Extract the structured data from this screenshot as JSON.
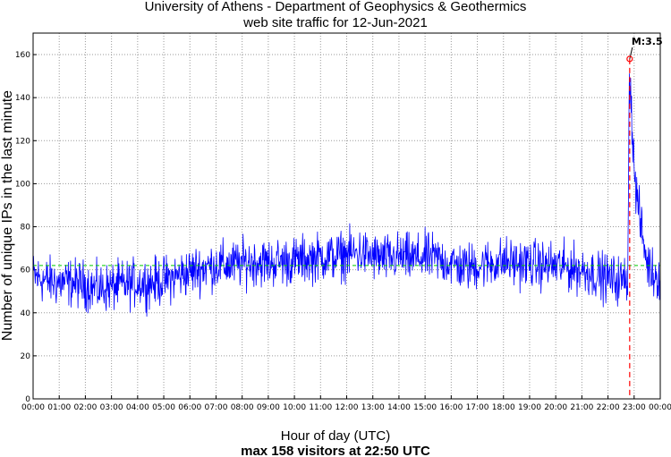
{
  "chart_data": {
    "type": "line",
    "title": "University of Athens - Department of Geophysics & Geothermics",
    "subtitle": "web site traffic for 12-Jun-2021",
    "xlabel": "Hour of day (UTC)",
    "ylabel": "Number of unique IPs in the last minute",
    "footer": "max 158 visitors at 22:50 UTC",
    "xlim": [
      0,
      24
    ],
    "ylim": [
      0,
      170
    ],
    "yticks": [
      0,
      20,
      40,
      60,
      80,
      100,
      120,
      140,
      160
    ],
    "xtick_labels": [
      "00:00",
      "01:00",
      "02:00",
      "03:00",
      "04:00",
      "05:00",
      "06:00",
      "07:00",
      "08:00",
      "09:00",
      "10:00",
      "11:00",
      "12:00",
      "13:00",
      "14:00",
      "15:00",
      "16:00",
      "17:00",
      "18:00",
      "19:00",
      "20:00",
      "21:00",
      "22:00",
      "23:00",
      "00:00"
    ],
    "grid": true,
    "mean_line": {
      "value": 62,
      "color": "#00cc00"
    },
    "series": [
      {
        "color": "#0000ff",
        "x": [
          0,
          0.5,
          1,
          1.5,
          2,
          2.5,
          3,
          3.5,
          4,
          4.5,
          5,
          5.5,
          6,
          6.5,
          7,
          7.5,
          8,
          8.5,
          9,
          9.5,
          10,
          10.5,
          11,
          11.5,
          12,
          12.5,
          13,
          13.5,
          14,
          14.5,
          15,
          15.5,
          16,
          16.5,
          17,
          17.5,
          18,
          18.5,
          19,
          19.5,
          20,
          20.5,
          21,
          21.5,
          22,
          22.5,
          22.75,
          22.83,
          22.92,
          23,
          23.17,
          23.33,
          23.5,
          23.75,
          24
        ],
        "y": [
          57,
          55,
          54,
          54,
          53,
          51,
          52,
          53,
          54,
          54,
          55,
          57,
          59,
          61,
          62,
          62,
          63,
          64,
          63,
          64,
          64,
          65,
          66,
          66,
          67,
          68,
          66,
          65,
          66,
          65,
          66,
          65,
          63,
          61,
          62,
          63,
          64,
          63,
          63,
          62,
          62,
          61,
          60,
          58,
          56,
          55,
          56,
          158,
          130,
          105,
          88,
          75,
          63,
          58,
          57
        ]
      }
    ],
    "event": {
      "x": 22.83,
      "y": 158,
      "label": "M:3.5",
      "line_color": "#ff0000",
      "marker_color": "#ff0000"
    }
  }
}
